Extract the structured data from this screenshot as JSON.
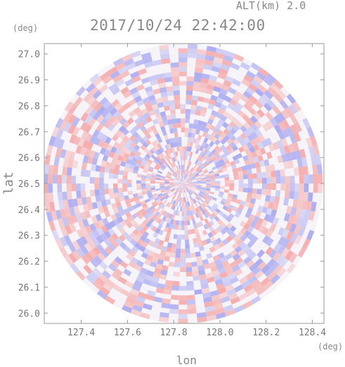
{
  "header": {
    "altitude_label": "ALT(km) 2.0",
    "timestamp": "2017/10/24 22:42:00"
  },
  "chart_data": {
    "type": "heatmap",
    "title": "2017/10/24 22:42:00",
    "annotation": "ALT(km) 2.0",
    "xlabel": "lon",
    "ylabel": "lat",
    "x_unit": "(deg)",
    "y_unit": "(deg)",
    "xlim": [
      127.24,
      128.45
    ],
    "ylim": [
      25.96,
      27.04
    ],
    "x_ticks": [
      127.4,
      127.6,
      127.8,
      128.0,
      128.2,
      128.4
    ],
    "x_tick_labels": [
      "127.4",
      "127.6",
      "127.8",
      "128.0",
      "128.2",
      "128.4"
    ],
    "y_ticks": [
      26.0,
      26.1,
      26.2,
      26.3,
      26.4,
      26.5,
      26.6,
      26.7,
      26.8,
      26.9,
      27.0
    ],
    "y_tick_labels": [
      "26.0",
      "26.1",
      "26.2",
      "26.3",
      "26.4",
      "26.5",
      "26.6",
      "26.7",
      "26.8",
      "26.9",
      "27.0"
    ],
    "radar_center": {
      "lon": 127.84,
      "lat": 26.5
    },
    "radar_range_deg": {
      "lon": 0.605,
      "lat": 0.54
    },
    "colors": {
      "positive": "#f5a8a8",
      "negative": "#a8a8f0",
      "frame": "#999999",
      "background": "#ffffff"
    },
    "grid": false
  }
}
